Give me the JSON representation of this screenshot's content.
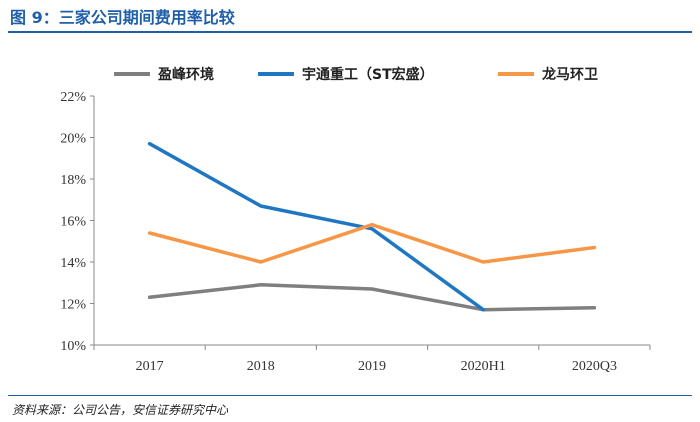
{
  "header": {
    "title": "图 9：三家公司期间费用率比较"
  },
  "footer": {
    "source": "资料来源：公司公告，安信证券研究中心"
  },
  "colors": {
    "accent": "#1f5fa8"
  },
  "chart_data": {
    "type": "line",
    "categories": [
      "2017",
      "2018",
      "2019",
      "2020H1",
      "2020Q3"
    ],
    "ylim": [
      0.1,
      0.22
    ],
    "yticks": [
      "10%",
      "12%",
      "14%",
      "16%",
      "18%",
      "20%",
      "22%"
    ],
    "grid": false,
    "legend_position": "top",
    "series": [
      {
        "name": "盈峰环境",
        "color": "#7f7f7f",
        "values": [
          0.123,
          0.129,
          0.127,
          0.117,
          0.118
        ]
      },
      {
        "name": "宇通重工（ST宏盛）",
        "color": "#1f77c4",
        "values": [
          0.197,
          0.167,
          0.156,
          0.117,
          null
        ]
      },
      {
        "name": "龙马环卫",
        "color": "#f79646",
        "values": [
          0.154,
          0.14,
          0.158,
          0.14,
          0.147
        ]
      }
    ]
  }
}
